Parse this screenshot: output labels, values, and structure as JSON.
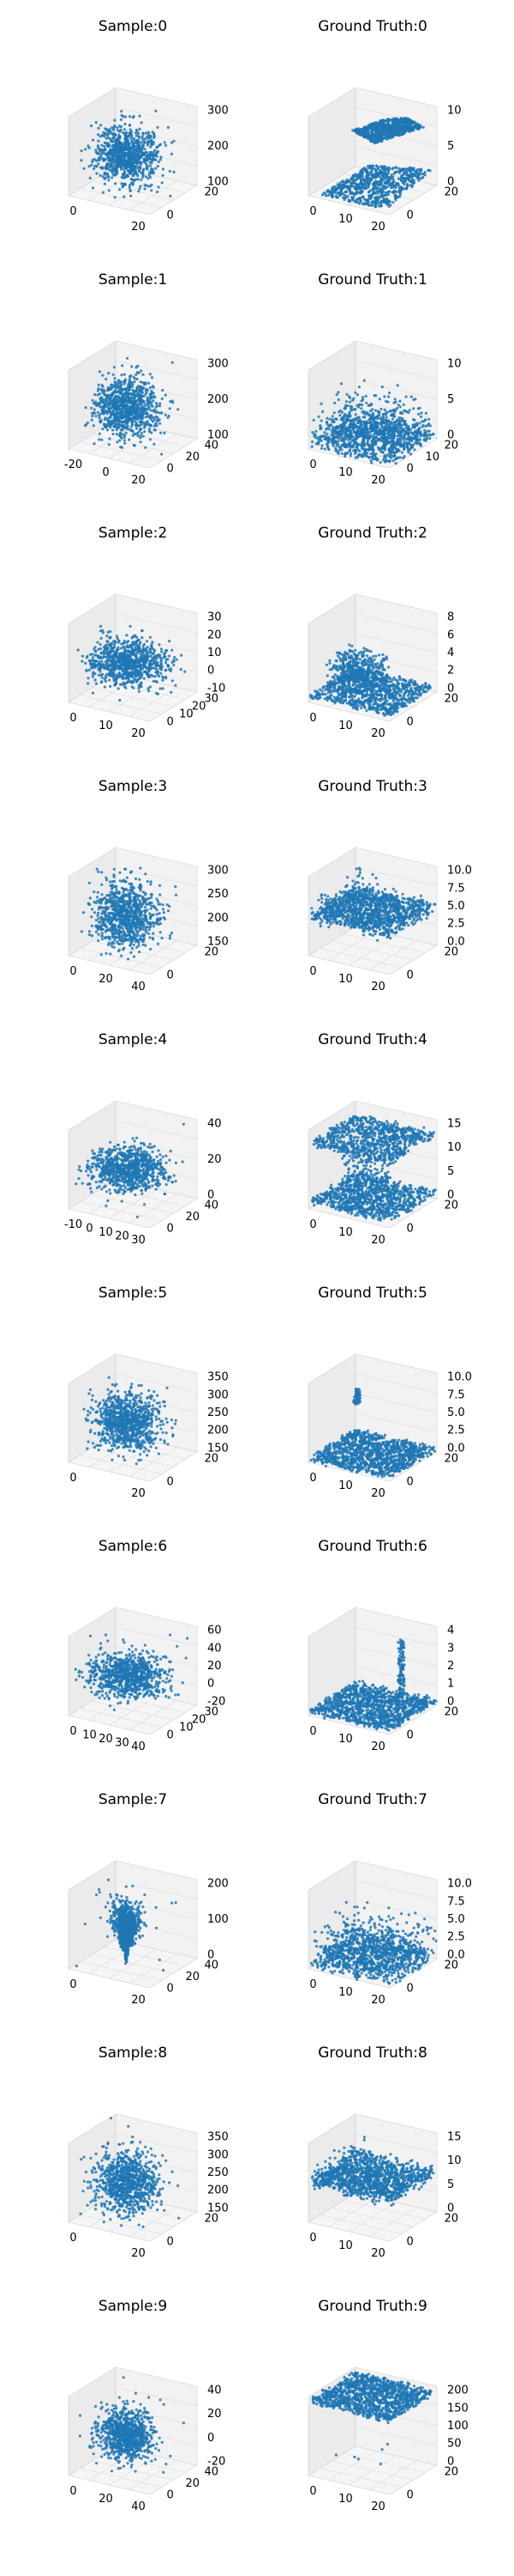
{
  "figure": {
    "background": "#ffffff",
    "point_color": "#1f77b4",
    "pane_color": "#f2f2f2",
    "grid_color": "#d9d9d9"
  },
  "chart_data": [
    {
      "type": "scatter3d",
      "title": "Sample:0",
      "xticks": [
        "0",
        "20"
      ],
      "yticks": [
        "20",
        "0"
      ],
      "zticks": [
        "300",
        "200",
        "100"
      ],
      "shape": "blob",
      "spread": "normal"
    },
    {
      "type": "scatter3d",
      "title": "Ground Truth:0",
      "xticks": [
        "0",
        "10",
        "20"
      ],
      "yticks": [
        "20",
        "0"
      ],
      "zticks": [
        "10",
        "5",
        "0"
      ],
      "shape": "planes-diagonal"
    },
    {
      "type": "scatter3d",
      "title": "Sample:1",
      "xticks": [
        "-20",
        "0",
        "20"
      ],
      "yticks": [
        "40",
        "20",
        "0"
      ],
      "zticks": [
        "300",
        "200",
        "100"
      ],
      "shape": "blob",
      "spread": "normal"
    },
    {
      "type": "scatter3d",
      "title": "Ground Truth:1",
      "xticks": [
        "0",
        "10",
        "20"
      ],
      "yticks": [
        "20",
        "10",
        "0"
      ],
      "zticks": [
        "10",
        "5",
        "0"
      ],
      "shape": "scene-clutter"
    },
    {
      "type": "scatter3d",
      "title": "Sample:2",
      "xticks": [
        "0",
        "10",
        "20"
      ],
      "yticks": [
        "30",
        "20",
        "10",
        "0"
      ],
      "zticks": [
        "30",
        "20",
        "10",
        "0",
        "-10"
      ],
      "shape": "blob",
      "spread": "wide"
    },
    {
      "type": "scatter3d",
      "title": "Ground Truth:2",
      "xticks": [
        "0",
        "10",
        "20"
      ],
      "yticks": [
        "20",
        "0"
      ],
      "zticks": [
        "8",
        "6",
        "4",
        "2",
        "0"
      ],
      "shape": "scene-floor"
    },
    {
      "type": "scatter3d",
      "title": "Sample:3",
      "xticks": [
        "0",
        "20",
        "40"
      ],
      "yticks": [
        "20",
        "0"
      ],
      "zticks": [
        "300",
        "250",
        "200",
        "150"
      ],
      "shape": "blob",
      "spread": "tall"
    },
    {
      "type": "scatter3d",
      "title": "Ground Truth:3",
      "xticks": [
        "0",
        "10",
        "20"
      ],
      "yticks": [
        "20",
        "0"
      ],
      "zticks": [
        "10.0",
        "7.5",
        "5.0",
        "2.5",
        "0.0"
      ],
      "shape": "scene-plane"
    },
    {
      "type": "scatter3d",
      "title": "Sample:4",
      "xticks": [
        "-10",
        "0",
        "10",
        "20",
        "30"
      ],
      "yticks": [
        "40",
        "20",
        "0"
      ],
      "zticks": [
        "40",
        "20",
        "0"
      ],
      "shape": "blob",
      "spread": "wide"
    },
    {
      "type": "scatter3d",
      "title": "Ground Truth:4",
      "xticks": [
        "0",
        "10",
        "20"
      ],
      "yticks": [
        "20",
        "0"
      ],
      "zticks": [
        "15",
        "10",
        "5",
        "0"
      ],
      "shape": "planes-stacked"
    },
    {
      "type": "scatter3d",
      "title": "Sample:5",
      "xticks": [
        "0",
        "20"
      ],
      "yticks": [
        "20",
        "0"
      ],
      "zticks": [
        "350",
        "300",
        "250",
        "200",
        "150"
      ],
      "shape": "blob",
      "spread": "normal"
    },
    {
      "type": "scatter3d",
      "title": "Ground Truth:5",
      "xticks": [
        "0",
        "10",
        "20"
      ],
      "yticks": [
        "20",
        "0"
      ],
      "zticks": [
        "10.0",
        "7.5",
        "5.0",
        "2.5",
        "0.0"
      ],
      "shape": "floor-with-spot"
    },
    {
      "type": "scatter3d",
      "title": "Sample:6",
      "xticks": [
        "0",
        "10",
        "20",
        "30",
        "40"
      ],
      "yticks": [
        "30",
        "20",
        "10",
        "0"
      ],
      "zticks": [
        "60",
        "40",
        "20",
        "0",
        "-20"
      ],
      "shape": "blob",
      "spread": "wide"
    },
    {
      "type": "scatter3d",
      "title": "Ground Truth:6",
      "xticks": [
        "0",
        "10",
        "20"
      ],
      "yticks": [
        "20",
        "0"
      ],
      "zticks": [
        "4",
        "3",
        "2",
        "1",
        "0"
      ],
      "shape": "floor-with-pole"
    },
    {
      "type": "scatter3d",
      "title": "Sample:7",
      "xticks": [
        "0",
        "20"
      ],
      "yticks": [
        "40",
        "20",
        "0"
      ],
      "zticks": [
        "200",
        "100",
        "0"
      ],
      "shape": "blob",
      "spread": "cone"
    },
    {
      "type": "scatter3d",
      "title": "Ground Truth:7",
      "xticks": [
        "0",
        "10",
        "20"
      ],
      "yticks": [
        "20",
        "0"
      ],
      "zticks": [
        "10.0",
        "7.5",
        "5.0",
        "2.5",
        "0.0"
      ],
      "shape": "scene-clutter"
    },
    {
      "type": "scatter3d",
      "title": "Sample:8",
      "xticks": [
        "0",
        "20"
      ],
      "yticks": [
        "20",
        "0"
      ],
      "zticks": [
        "350",
        "300",
        "250",
        "200",
        "150"
      ],
      "shape": "blob",
      "spread": "normal"
    },
    {
      "type": "scatter3d",
      "title": "Ground Truth:8",
      "xticks": [
        "0",
        "10",
        "20"
      ],
      "yticks": [
        "20",
        "0"
      ],
      "zticks": [
        "15",
        "10",
        "5",
        "0"
      ],
      "shape": "scene-plane"
    },
    {
      "type": "scatter3d",
      "title": "Sample:9",
      "xticks": [
        "0",
        "20",
        "40"
      ],
      "yticks": [
        "40",
        "20",
        "0"
      ],
      "zticks": [
        "40",
        "20",
        "0",
        "-20"
      ],
      "shape": "blob",
      "spread": "small"
    },
    {
      "type": "scatter3d",
      "title": "Ground Truth:9",
      "xticks": [
        "0",
        "10",
        "20"
      ],
      "yticks": [
        "20",
        "0"
      ],
      "zticks": [
        "200",
        "150",
        "100",
        "50",
        "0"
      ],
      "shape": "plane-high"
    }
  ]
}
